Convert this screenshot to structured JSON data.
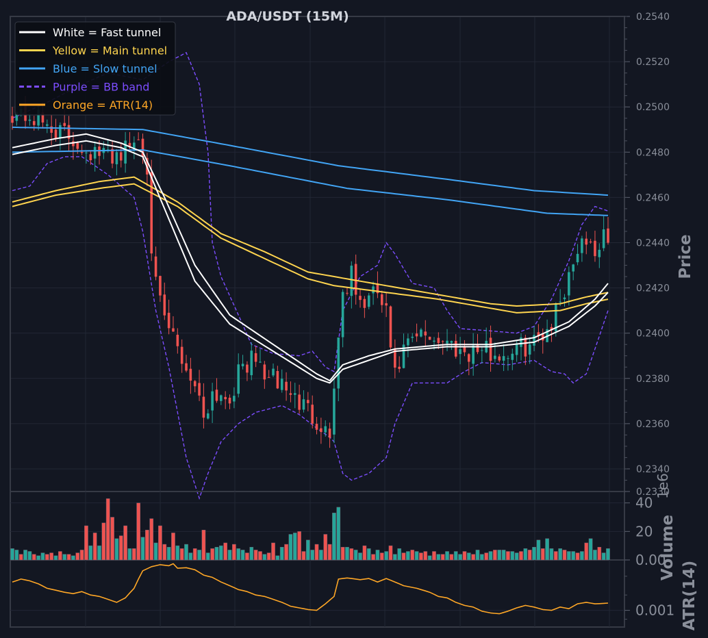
{
  "chart_data": {
    "type": "candlestick",
    "title": "ADA/USDT (15M)",
    "colors": {
      "background": "#131722",
      "frame": "#363a45",
      "grid": "#222734",
      "up": "#26a69a",
      "down": "#ef5350",
      "fast": "#ffffff",
      "main": "#ffd54f",
      "slow": "#42a5f5",
      "bb": "#7c4dff",
      "atr": "#ffa726"
    },
    "legend": {
      "placement": "top-left",
      "entries": [
        {
          "label": "White = Fast tunnel",
          "color": "#ffffff",
          "style": "solid"
        },
        {
          "label": "Yellow = Main tunnel",
          "color": "#ffd54f",
          "style": "solid"
        },
        {
          "label": "Blue = Slow tunnel",
          "color": "#42a5f5",
          "style": "solid"
        },
        {
          "label": "Purple = BB band",
          "color": "#7c4dff",
          "style": "dashed"
        },
        {
          "label": "Orange = ATR(14)",
          "color": "#ffa726",
          "style": "solid"
        }
      ]
    },
    "price_panel": {
      "ylabel": "Price",
      "ylim": [
        0.233,
        0.254
      ],
      "ticks": [
        "0.2540",
        "0.2520",
        "0.2500",
        "0.2480",
        "0.2460",
        "0.2440",
        "0.2420",
        "0.2400",
        "0.2380",
        "0.2360",
        "0.2340",
        "0.2330"
      ],
      "fast_upper": [
        [
          0,
          0.2482
        ],
        [
          10,
          0.2486
        ],
        [
          17,
          0.2488
        ],
        [
          25,
          0.2484
        ],
        [
          30,
          0.248
        ],
        [
          35,
          0.246
        ],
        [
          42,
          0.243
        ],
        [
          50,
          0.2408
        ],
        [
          60,
          0.2395
        ],
        [
          70,
          0.2382
        ],
        [
          73,
          0.2379
        ],
        [
          76,
          0.2386
        ],
        [
          82,
          0.239
        ],
        [
          88,
          0.2393
        ],
        [
          100,
          0.2395
        ],
        [
          110,
          0.2395
        ],
        [
          120,
          0.2398
        ],
        [
          128,
          0.2405
        ],
        [
          134,
          0.2415
        ],
        [
          137,
          0.2422
        ]
      ],
      "fast_lower": [
        [
          0,
          0.2479
        ],
        [
          10,
          0.2483
        ],
        [
          17,
          0.2485
        ],
        [
          25,
          0.2482
        ],
        [
          30,
          0.2478
        ],
        [
          35,
          0.2455
        ],
        [
          42,
          0.2423
        ],
        [
          50,
          0.2404
        ],
        [
          60,
          0.2392
        ],
        [
          70,
          0.238
        ],
        [
          73,
          0.2378
        ],
        [
          76,
          0.2384
        ],
        [
          82,
          0.2388
        ],
        [
          88,
          0.2392
        ],
        [
          100,
          0.2394
        ],
        [
          110,
          0.2394
        ],
        [
          120,
          0.2396
        ],
        [
          128,
          0.2403
        ],
        [
          134,
          0.2412
        ],
        [
          137,
          0.2418
        ]
      ],
      "main_upper": [
        [
          0,
          0.2458
        ],
        [
          10,
          0.2463
        ],
        [
          20,
          0.2467
        ],
        [
          28,
          0.2469
        ],
        [
          38,
          0.2458
        ],
        [
          48,
          0.2444
        ],
        [
          58,
          0.2436
        ],
        [
          68,
          0.2427
        ],
        [
          74,
          0.2425
        ],
        [
          86,
          0.2421
        ],
        [
          98,
          0.2417
        ],
        [
          110,
          0.2413
        ],
        [
          116,
          0.2412
        ],
        [
          126,
          0.2413
        ],
        [
          132,
          0.2416
        ],
        [
          137,
          0.2418
        ]
      ],
      "main_lower": [
        [
          0,
          0.2456
        ],
        [
          10,
          0.2461
        ],
        [
          20,
          0.2464
        ],
        [
          28,
          0.2466
        ],
        [
          38,
          0.2456
        ],
        [
          48,
          0.2442
        ],
        [
          58,
          0.2433
        ],
        [
          68,
          0.2424
        ],
        [
          74,
          0.2421
        ],
        [
          86,
          0.2418
        ],
        [
          98,
          0.2415
        ],
        [
          110,
          0.2411
        ],
        [
          116,
          0.2409
        ],
        [
          126,
          0.241
        ],
        [
          132,
          0.2413
        ],
        [
          137,
          0.2415
        ]
      ],
      "slow_upper": [
        [
          0,
          0.2491
        ],
        [
          30,
          0.249
        ],
        [
          50,
          0.2483
        ],
        [
          75,
          0.2474
        ],
        [
          100,
          0.2468
        ],
        [
          120,
          0.2463
        ],
        [
          137,
          0.2461
        ]
      ],
      "slow_lower": [
        [
          0,
          0.248
        ],
        [
          30,
          0.2481
        ],
        [
          50,
          0.2474
        ],
        [
          77,
          0.2464
        ],
        [
          100,
          0.2459
        ],
        [
          123,
          0.2453
        ],
        [
          137,
          0.2452
        ]
      ],
      "bb_upper": [
        [
          0,
          0.2495
        ],
        [
          8,
          0.2502
        ],
        [
          16,
          0.251
        ],
        [
          22,
          0.2515
        ],
        [
          30,
          0.2512
        ],
        [
          36,
          0.252
        ],
        [
          40,
          0.2524
        ],
        [
          43,
          0.251
        ],
        [
          45,
          0.248
        ],
        [
          46,
          0.244
        ],
        [
          48,
          0.2425
        ],
        [
          52,
          0.2408
        ],
        [
          55,
          0.2395
        ],
        [
          60,
          0.2391
        ],
        [
          66,
          0.239
        ],
        [
          69,
          0.2392
        ],
        [
          72,
          0.2385
        ],
        [
          74,
          0.2383
        ],
        [
          76,
          0.241
        ],
        [
          80,
          0.2425
        ],
        [
          84,
          0.243
        ],
        [
          86,
          0.244
        ],
        [
          88,
          0.2435
        ],
        [
          92,
          0.2422
        ],
        [
          97,
          0.242
        ],
        [
          100,
          0.241
        ],
        [
          103,
          0.2402
        ],
        [
          110,
          0.2401
        ],
        [
          116,
          0.24
        ],
        [
          120,
          0.2403
        ],
        [
          124,
          0.2415
        ],
        [
          128,
          0.2432
        ],
        [
          131,
          0.2448
        ],
        [
          134,
          0.2456
        ],
        [
          137,
          0.2454
        ]
      ],
      "bb_lower": [
        [
          0,
          0.2463
        ],
        [
          4,
          0.2465
        ],
        [
          8,
          0.2475
        ],
        [
          12,
          0.2478
        ],
        [
          16,
          0.2478
        ],
        [
          22,
          0.247
        ],
        [
          28,
          0.246
        ],
        [
          30,
          0.2445
        ],
        [
          33,
          0.241
        ],
        [
          36,
          0.2385
        ],
        [
          40,
          0.2345
        ],
        [
          43,
          0.2327
        ],
        [
          45,
          0.2338
        ],
        [
          48,
          0.2352
        ],
        [
          52,
          0.236
        ],
        [
          56,
          0.2365
        ],
        [
          62,
          0.2368
        ],
        [
          66,
          0.2364
        ],
        [
          70,
          0.2358
        ],
        [
          73,
          0.2354
        ],
        [
          74,
          0.2352
        ],
        [
          76,
          0.2338
        ],
        [
          78,
          0.2335
        ],
        [
          82,
          0.2338
        ],
        [
          86,
          0.2345
        ],
        [
          88,
          0.236
        ],
        [
          92,
          0.2378
        ],
        [
          100,
          0.2378
        ],
        [
          104,
          0.2383
        ],
        [
          108,
          0.2387
        ],
        [
          114,
          0.2386
        ],
        [
          120,
          0.2388
        ],
        [
          124,
          0.2383
        ],
        [
          127,
          0.2382
        ],
        [
          129,
          0.2378
        ],
        [
          132,
          0.2382
        ],
        [
          134,
          0.2393
        ],
        [
          137,
          0.241
        ]
      ],
      "close_path": [
        [
          0,
          0.2498
        ],
        [
          5,
          0.2495
        ],
        [
          10,
          0.249
        ],
        [
          15,
          0.2484
        ],
        [
          20,
          0.2478
        ],
        [
          25,
          0.248
        ],
        [
          29,
          0.2486
        ],
        [
          31,
          0.2475
        ],
        [
          32,
          0.244
        ],
        [
          33,
          0.242
        ],
        [
          35,
          0.2405
        ],
        [
          37,
          0.2398
        ],
        [
          39,
          0.2388
        ],
        [
          42,
          0.2378
        ],
        [
          44,
          0.2364
        ],
        [
          46,
          0.2374
        ],
        [
          50,
          0.2372
        ],
        [
          53,
          0.2386
        ],
        [
          56,
          0.2388
        ],
        [
          59,
          0.238
        ],
        [
          62,
          0.2378
        ],
        [
          65,
          0.2371
        ],
        [
          68,
          0.2366
        ],
        [
          71,
          0.236
        ],
        [
          73,
          0.2355
        ],
        [
          74,
          0.2378
        ],
        [
          76,
          0.2418
        ],
        [
          78,
          0.2425
        ],
        [
          80,
          0.2412
        ],
        [
          84,
          0.2418
        ],
        [
          86,
          0.2408
        ],
        [
          88,
          0.238
        ],
        [
          90,
          0.2392
        ],
        [
          93,
          0.2398
        ],
        [
          96,
          0.2399
        ],
        [
          100,
          0.2396
        ],
        [
          104,
          0.2392
        ],
        [
          108,
          0.2393
        ],
        [
          112,
          0.239
        ],
        [
          116,
          0.2393
        ],
        [
          120,
          0.2396
        ],
        [
          124,
          0.2405
        ],
        [
          127,
          0.242
        ],
        [
          129,
          0.2432
        ],
        [
          131,
          0.2443
        ],
        [
          134,
          0.2437
        ],
        [
          137,
          0.2443
        ]
      ]
    },
    "volume_panel": {
      "ylabel": "Volume",
      "multiplier": "1e6",
      "ylim": [
        0,
        48
      ],
      "ticks": [
        "0.00",
        "20",
        "40"
      ],
      "values": [
        8,
        7,
        4,
        7,
        6,
        4,
        3,
        5,
        4,
        5,
        3,
        6,
        4,
        4,
        3,
        5,
        7,
        24,
        10,
        19,
        10,
        26,
        43,
        30,
        15,
        17,
        24,
        8,
        8,
        40,
        16,
        21,
        29,
        12,
        24,
        11,
        9,
        19,
        10,
        8,
        11,
        5,
        8,
        7,
        21,
        5,
        8,
        9,
        10,
        12,
        7,
        11,
        8,
        7,
        5,
        9,
        7,
        6,
        4,
        5,
        12,
        3,
        9,
        11,
        18,
        19,
        20,
        6,
        14,
        7,
        11,
        7,
        18,
        11,
        33,
        37,
        9,
        9,
        8,
        7,
        5,
        10,
        8,
        4,
        7,
        5,
        6,
        10,
        4,
        8,
        5,
        6,
        7,
        6,
        5,
        6,
        3,
        6,
        4,
        4,
        6,
        4,
        6,
        4,
        6,
        5,
        4,
        7,
        4,
        5,
        6,
        7,
        7,
        7,
        6,
        6,
        5,
        6,
        8,
        7,
        9,
        14,
        8,
        15,
        8,
        6,
        8,
        7,
        6,
        6,
        5,
        6,
        12,
        15,
        7,
        9,
        5,
        8
      ],
      "up_mask": [
        1,
        1,
        0,
        1,
        1,
        0,
        1,
        1,
        0,
        0,
        1,
        0,
        1,
        0,
        1,
        0,
        0,
        0,
        1,
        0,
        1,
        0,
        0,
        0,
        1,
        0,
        0,
        1,
        0,
        0,
        1,
        0,
        0,
        1,
        0,
        0,
        1,
        0,
        1,
        0,
        1,
        1,
        0,
        1,
        0,
        1,
        0,
        1,
        1,
        0,
        1,
        0,
        1,
        1,
        0,
        1,
        0,
        0,
        1,
        0,
        0,
        1,
        1,
        0,
        1,
        1,
        0,
        0,
        1,
        1,
        0,
        1,
        0,
        0,
        1,
        1,
        0,
        1,
        0,
        1,
        1,
        0,
        1,
        0,
        1,
        0,
        1,
        0,
        1,
        1,
        0,
        1,
        0,
        1,
        0,
        0,
        1,
        0,
        1,
        0,
        1,
        0,
        1,
        1,
        0,
        1,
        0,
        1,
        1,
        0,
        1,
        0,
        1,
        1,
        0,
        1,
        1,
        0,
        1,
        0,
        1,
        1,
        0,
        1,
        1,
        0,
        1,
        0,
        1,
        1,
        0,
        1,
        0,
        1,
        1,
        0,
        1,
        1
      ]
    },
    "atr_panel": {
      "ylabel": "ATR(14)",
      "ticks": [
        "0.001"
      ],
      "values": [
        [
          0,
          0.0014
        ],
        [
          2,
          0.00145
        ],
        [
          4,
          0.00142
        ],
        [
          6,
          0.00137
        ],
        [
          8,
          0.0013
        ],
        [
          10,
          0.00127
        ],
        [
          12,
          0.00124
        ],
        [
          14,
          0.00122
        ],
        [
          16,
          0.00125
        ],
        [
          18,
          0.0012
        ],
        [
          20,
          0.00118
        ],
        [
          22,
          0.00114
        ],
        [
          24,
          0.0011
        ],
        [
          26,
          0.00116
        ],
        [
          28,
          0.0013
        ],
        [
          30,
          0.0016
        ],
        [
          32,
          0.00168
        ],
        [
          34,
          0.00172
        ],
        [
          36,
          0.0017
        ],
        [
          37,
          0.00174
        ],
        [
          38,
          0.00165
        ],
        [
          40,
          0.00166
        ],
        [
          42,
          0.00162
        ],
        [
          44,
          0.00152
        ],
        [
          46,
          0.00148
        ],
        [
          48,
          0.0014
        ],
        [
          50,
          0.00134
        ],
        [
          52,
          0.00128
        ],
        [
          54,
          0.00125
        ],
        [
          56,
          0.0012
        ],
        [
          58,
          0.00118
        ],
        [
          60,
          0.00114
        ],
        [
          62,
          0.0011
        ],
        [
          64,
          0.00105
        ],
        [
          66,
          0.00103
        ],
        [
          68,
          0.00101
        ],
        [
          70,
          0.001
        ],
        [
          72,
          0.00108
        ],
        [
          74,
          0.00118
        ],
        [
          75,
          0.00145
        ],
        [
          77,
          0.00147
        ],
        [
          80,
          0.00144
        ],
        [
          82,
          0.00146
        ],
        [
          84,
          0.0014
        ],
        [
          86,
          0.00146
        ],
        [
          88,
          0.0014
        ],
        [
          90,
          0.00134
        ],
        [
          93,
          0.0013
        ],
        [
          96,
          0.00124
        ],
        [
          98,
          0.00118
        ],
        [
          100,
          0.00116
        ],
        [
          102,
          0.0011
        ],
        [
          104,
          0.00106
        ],
        [
          106,
          0.00104
        ],
        [
          108,
          0.00099
        ],
        [
          110,
          0.00097
        ],
        [
          112,
          0.00096
        ],
        [
          114,
          0.00099
        ],
        [
          116,
          0.00103
        ],
        [
          118,
          0.00106
        ],
        [
          120,
          0.00104
        ],
        [
          122,
          0.00101
        ],
        [
          124,
          0.001
        ],
        [
          126,
          0.00104
        ],
        [
          128,
          0.00102
        ],
        [
          130,
          0.00108
        ],
        [
          132,
          0.0011
        ],
        [
          134,
          0.00108
        ],
        [
          137,
          0.00109
        ]
      ]
    },
    "n_candles": 138
  }
}
